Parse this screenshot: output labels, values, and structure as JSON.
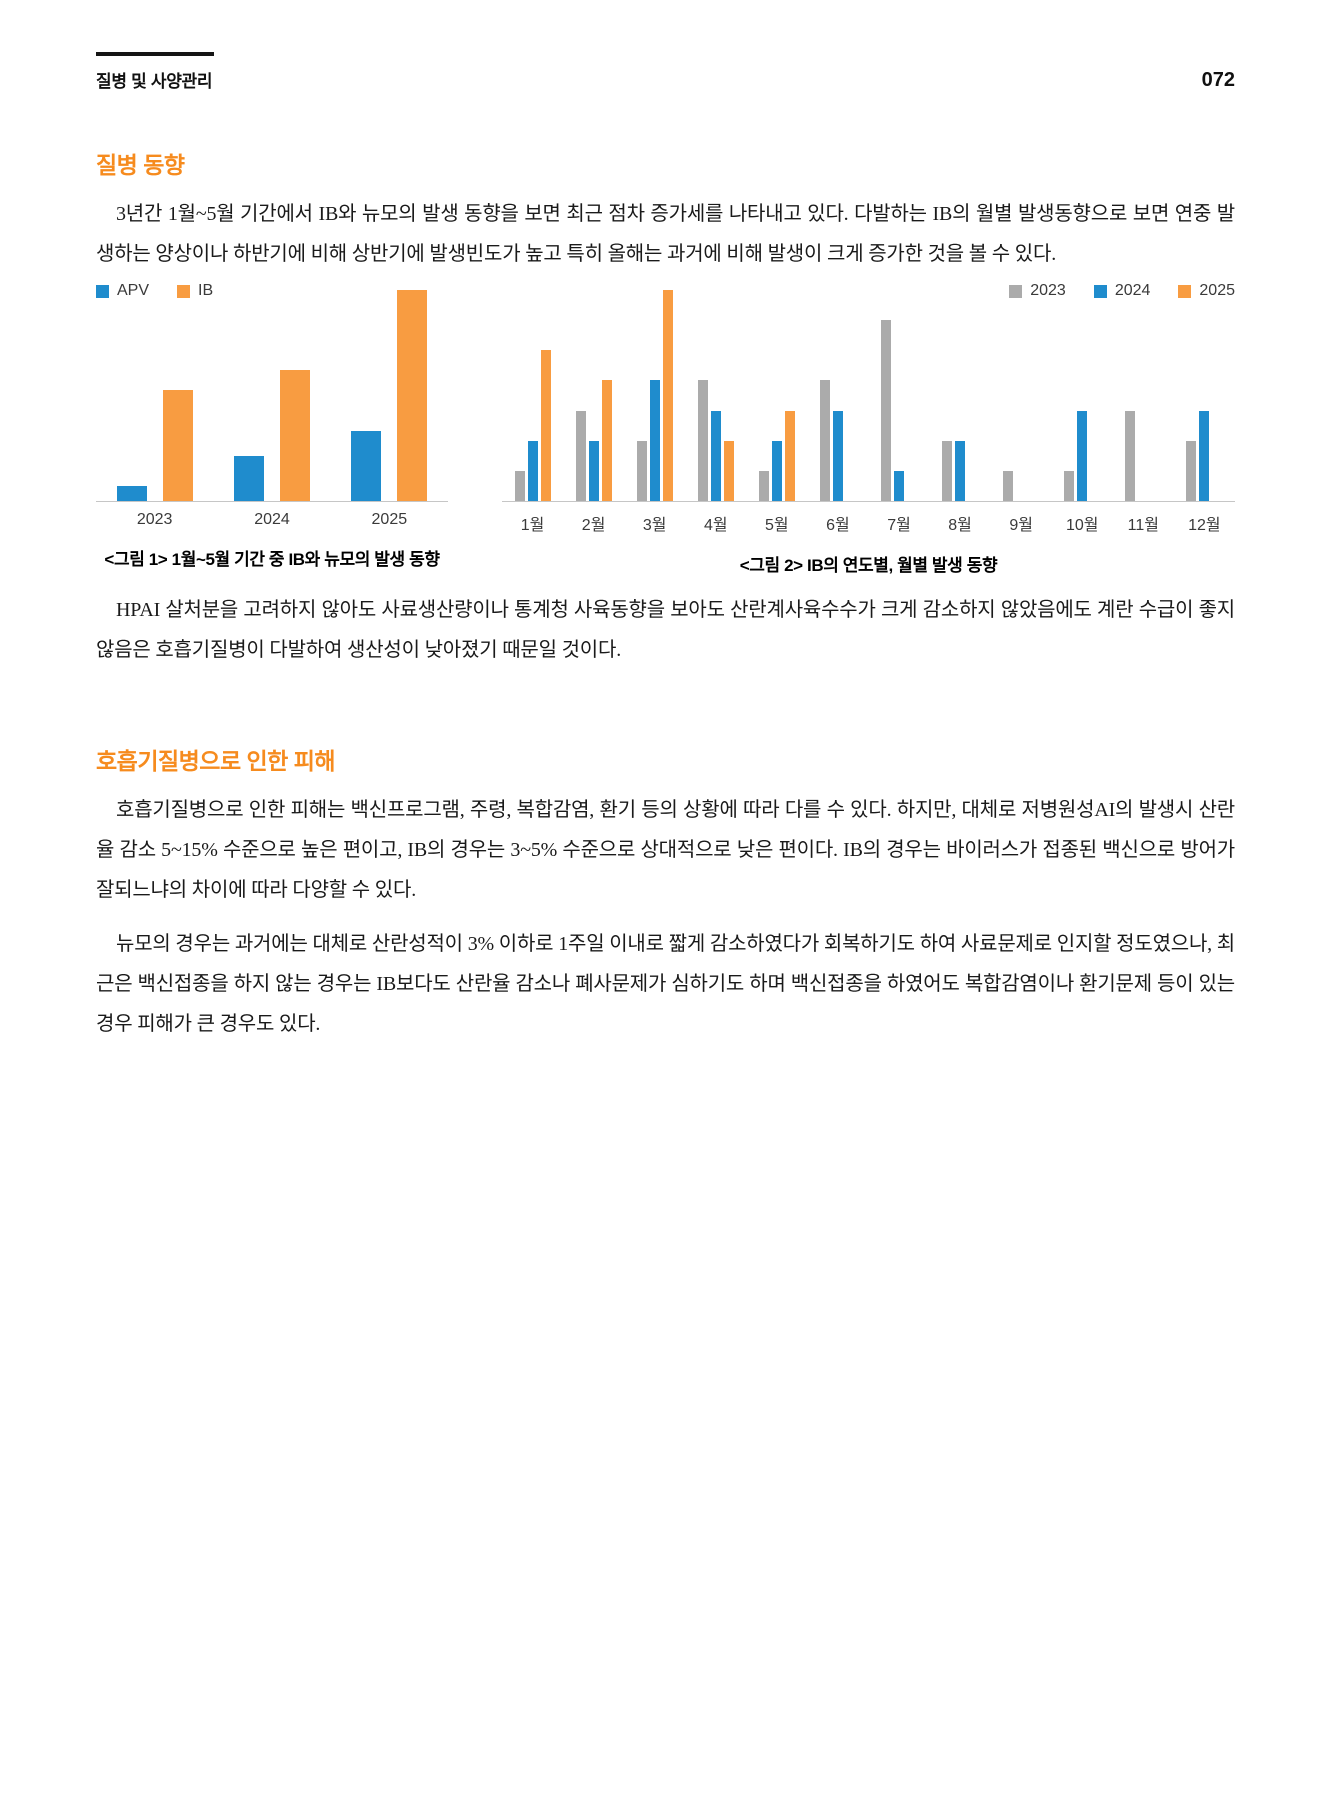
{
  "header": {
    "section_title": "질병 및 사양관리",
    "page_number": "072"
  },
  "colors": {
    "heading_orange": "#f68b1e",
    "bar_blue": "#1f8ccd",
    "bar_orange": "#f89c41",
    "bar_gray": "#ababab",
    "axis_line": "#c6c6c6"
  },
  "sections": [
    {
      "heading": "질병 동향",
      "paragraphs": [
        "3년간 1월~5월 기간에서 IB와 뉴모의 발생 동향을 보면 최근 점차 증가세를 나타내고 있다. 다발하는 IB의 월별 발생동향으로 보면 연중 발생하는 양상이나 하반기에 비해 상반기에 발생빈도가 높고 특히 올해는 과거에 비해 발생이 크게 증가한 것을 볼 수 있다.",
        "HPAI 살처분을 고려하지 않아도 사료생산량이나 통계청 사육동향을 보아도 산란계사육수수가 크게 감소하지 않았음에도 계란 수급이 좋지 않음은 호흡기질병이 다발하여 생산성이 낮아졌기 때문일 것이다."
      ]
    },
    {
      "heading": "호흡기질병으로 인한 피해",
      "paragraphs": [
        "호흡기질병으로 인한 피해는 백신프로그램, 주령, 복합감염, 환기 등의 상황에 따라 다를 수 있다. 하지만, 대체로 저병원성AI의 발생시 산란율 감소 5~15% 수준으로 높은 편이고, IB의 경우는 3~5% 수준으로 상대적으로 낮은 편이다. IB의 경우는 바이러스가 접종된 백신으로 방어가 잘되느냐의 차이에 따라 다양할 수 있다.",
        "뉴모의 경우는 과거에는 대체로 산란성적이 3% 이하로 1주일 이내로 짧게 감소하였다가 회복하기도 하여 사료문제로 인지할 정도였으나, 최근은 백신접종을 하지 않는 경우는 IB보다도 산란율 감소나 폐사문제가 심하기도 하며 백신접종을 하였어도 복합감염이나 환기문제 등이 있는 경우 피해가 큰 경우도 있다."
      ]
    }
  ],
  "chart_data": [
    {
      "type": "bar",
      "title": "<그림 1> 1월~5월 기간 중 IB와 뉴모의 발생 동향",
      "categories": [
        "2023",
        "2024",
        "2025"
      ],
      "series": [
        {
          "name": "APV",
          "color": "#1f8ccd",
          "values": [
            1.5,
            4.5,
            7
          ]
        },
        {
          "name": "IB",
          "color": "#f89c41",
          "values": [
            11,
            13,
            21
          ]
        }
      ],
      "xlabel": "",
      "ylabel": "",
      "ylim": [
        0,
        21
      ],
      "grid": false,
      "y_axis_visible": false,
      "legend_position": "top-left"
    },
    {
      "type": "bar",
      "title": "<그림 2> IB의 연도별, 월별 발생 동향",
      "categories": [
        "1월",
        "2월",
        "3월",
        "4월",
        "5월",
        "6월",
        "7월",
        "8월",
        "9월",
        "10월",
        "11월",
        "12월"
      ],
      "series": [
        {
          "name": "2023",
          "color": "#ababab",
          "values": [
            1,
            3,
            2,
            4,
            1,
            4,
            6,
            2,
            1,
            1,
            3,
            2
          ]
        },
        {
          "name": "2024",
          "color": "#1f8ccd",
          "values": [
            2,
            2,
            4,
            3,
            2,
            3,
            1,
            2,
            0,
            3,
            0,
            3
          ]
        },
        {
          "name": "2025",
          "color": "#f89c41",
          "values": [
            5,
            4,
            7,
            2,
            3,
            0,
            0,
            0,
            0,
            0,
            0,
            0
          ]
        }
      ],
      "xlabel": "",
      "ylabel": "",
      "ylim": [
        0,
        7
      ],
      "grid": false,
      "y_axis_visible": false,
      "legend_position": "top-right"
    }
  ]
}
